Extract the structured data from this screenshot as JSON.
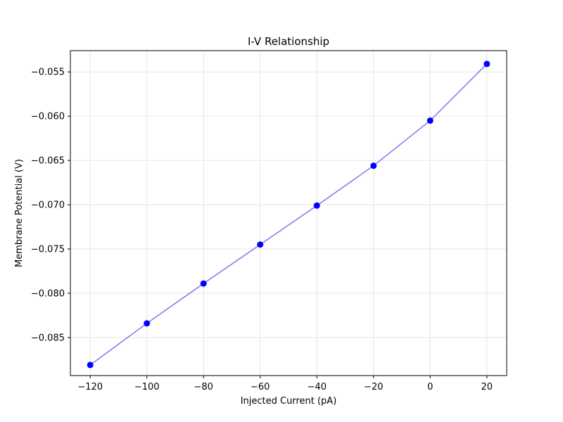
{
  "chart_data": {
    "type": "line",
    "title": "I-V Relationship",
    "xlabel": "Injected Current (pA)",
    "ylabel": "Membrane Potential (V)",
    "xlim": [
      -127,
      27
    ],
    "ylim": [
      -0.0893,
      -0.0526
    ],
    "xticks": [
      -120,
      -100,
      -80,
      -60,
      -40,
      -20,
      0,
      20
    ],
    "xtick_labels": [
      "−120",
      "−100",
      "−80",
      "−60",
      "−40",
      "−20",
      "0",
      "20"
    ],
    "yticks": [
      -0.085,
      -0.08,
      -0.075,
      -0.07,
      -0.065,
      -0.06,
      -0.055
    ],
    "ytick_labels": [
      "−0.085",
      "−0.080",
      "−0.075",
      "−0.070",
      "−0.065",
      "−0.060",
      "−0.055"
    ],
    "grid": true,
    "series": [
      {
        "x": [
          -120,
          -100,
          -80,
          -60,
          -40,
          -20,
          0,
          20
        ],
        "y": [
          -0.0881,
          -0.0834,
          -0.0789,
          -0.0745,
          -0.0701,
          -0.0656,
          -0.0605,
          -0.0541
        ],
        "line_color": "#8080f5",
        "marker_color": "#0000ff",
        "marker": "circle"
      }
    ]
  }
}
